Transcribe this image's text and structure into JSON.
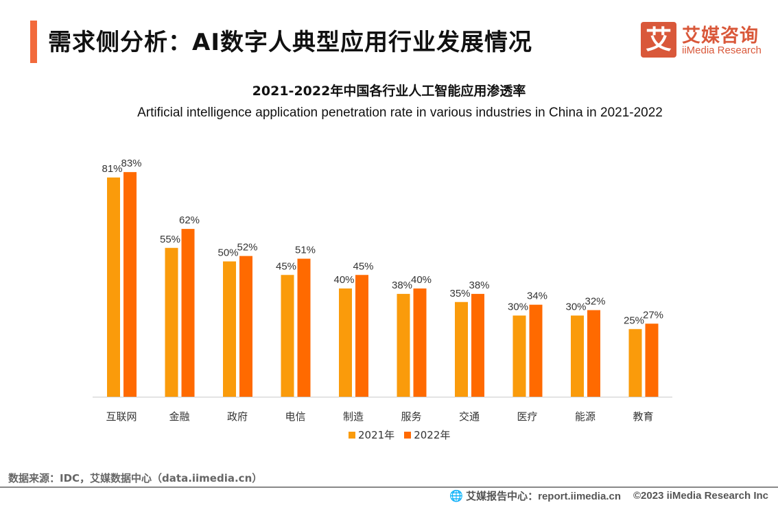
{
  "header": {
    "title": "需求侧分析：AI数字人典型应用行业发展情况"
  },
  "logo": {
    "mark": "艾",
    "cn": "艾媒咨询",
    "en": "iiMedia Research"
  },
  "chart_data": {
    "type": "bar",
    "title": "2021-2022年中国各行业人工智能应用渗透率",
    "subtitle": "Artificial intelligence application penetration rate in various industries in China in 2021-2022",
    "categories": [
      "互联网",
      "金融",
      "政府",
      "电信",
      "制造",
      "服务",
      "交通",
      "医疗",
      "能源",
      "教育"
    ],
    "series": [
      {
        "name": "2021年",
        "color": "#FA9B0B",
        "values": [
          81,
          55,
          50,
          45,
          40,
          38,
          35,
          30,
          30,
          25
        ]
      },
      {
        "name": "2022年",
        "color": "#FF6A00",
        "values": [
          83,
          62,
          52,
          51,
          45,
          40,
          38,
          34,
          32,
          27
        ]
      }
    ],
    "value_suffix": "%",
    "ylim": [
      0,
      100
    ],
    "grid": false,
    "legend": "bottom"
  },
  "footer": {
    "source": "数据来源：IDC，艾媒数据中心（data.iimedia.cn）",
    "report": "艾媒报告中心：report.iimedia.cn",
    "copyright": "©2023  iiMedia Research  Inc"
  }
}
